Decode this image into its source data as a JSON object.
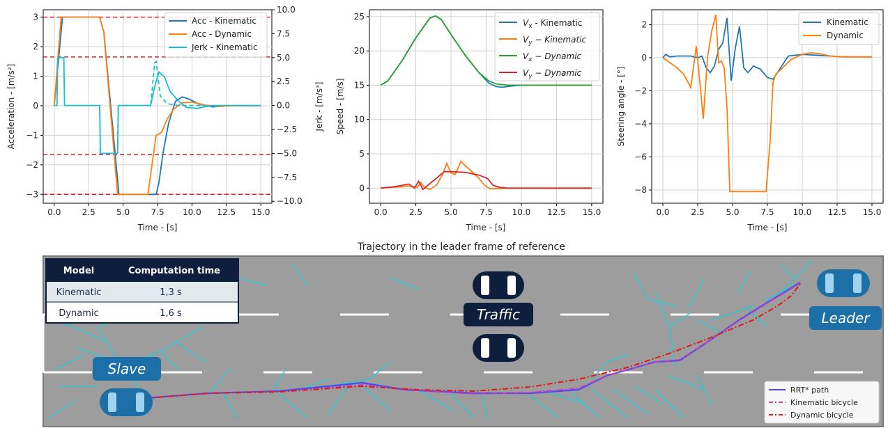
{
  "chart_data": [
    {
      "type": "line",
      "xlabel": "Time - [s]",
      "ylabel": "Acceleration - [m/s²]",
      "y2label": "Jerk - [m/s³]",
      "xlim": [
        -0.8,
        15.8
      ],
      "ylim": [
        -3.3,
        3.25
      ],
      "y2lim": [
        -10.2,
        10.0
      ],
      "xticks": [
        "0.0",
        "2.5",
        "5.0",
        "7.5",
        "10.0",
        "12.5",
        "15.0"
      ],
      "yticks": [
        "-3",
        "-2",
        "-1",
        "0",
        "1",
        "2",
        "3"
      ],
      "y2ticks": [
        "-10.0",
        "-7.5",
        "-5.0",
        "-2.5",
        "0.0",
        "2.5",
        "5.0",
        "7.5",
        "10.0"
      ],
      "limits": [
        3,
        -3,
        1.65,
        -1.65
      ],
      "legend": "top-right",
      "series": [
        {
          "name": "Acc - Kinematic",
          "color": "#1f77b4",
          "style": "solid",
          "x": [
            0,
            0.6,
            3.3,
            3.6,
            4.7,
            7.0,
            7.4,
            7.6,
            7.9,
            8.3,
            8.8,
            9.3,
            9.8,
            10.5,
            11.5,
            12.5,
            13.5,
            15
          ],
          "y": [
            0,
            3,
            3,
            2.5,
            -3,
            -3,
            -3,
            -2.6,
            -1.6,
            -0.6,
            0.15,
            0.3,
            0.22,
            0.06,
            -0.04,
            0,
            0,
            0
          ]
        },
        {
          "name": "Acc - Dynamic",
          "color": "#ff7f0e",
          "style": "solid",
          "x": [
            0,
            0.5,
            3.3,
            3.6,
            4.6,
            6.8,
            7.1,
            7.4,
            7.8,
            8.2,
            8.7,
            9.3,
            10.0,
            11,
            12,
            13,
            15
          ],
          "y": [
            0,
            3,
            3,
            2.5,
            -3,
            -3,
            -2,
            -1,
            -0.9,
            -0.45,
            -0.1,
            0.1,
            0.12,
            0.02,
            -0.02,
            0,
            0
          ]
        },
        {
          "name": "Jerk - Kinematic",
          "color": "#17becf",
          "style": "solid",
          "x": [
            0,
            0.2,
            0.25,
            0.7,
            0.75,
            3.3,
            3.35,
            4.6,
            4.65,
            6.9,
            7.0,
            7.3,
            7.6,
            8.0,
            8.4,
            9.0,
            9.6,
            10.4,
            11,
            12,
            13,
            15
          ],
          "y": [
            0,
            0,
            5,
            5,
            0,
            0,
            -5,
            -5,
            0,
            0,
            0,
            2,
            3.5,
            3,
            1.5,
            0.5,
            -0.2,
            -0.3,
            -0.1,
            0,
            0,
            0
          ]
        },
        {
          "name": "",
          "color": "#17becf",
          "style": "dashed",
          "x": [
            3.3,
            3.35,
            4.6,
            4.65,
            6.9,
            7.0,
            7.3,
            7.4,
            7.7,
            8.2,
            9,
            10,
            11,
            13,
            15
          ],
          "y": [
            0,
            -5,
            -5,
            0,
            0,
            0,
            4.5,
            4.6,
            1.0,
            0.2,
            0,
            0,
            0,
            0,
            0
          ]
        }
      ]
    },
    {
      "type": "line",
      "xlabel": "Time - [s]",
      "ylabel": "Speed - [m/s]",
      "xlim": [
        -0.8,
        15.8
      ],
      "ylim": [
        -2.2,
        26
      ],
      "xticks": [
        "0.0",
        "2.5",
        "5.0",
        "7.5",
        "10.0",
        "12.5",
        "15.0"
      ],
      "yticks": [
        "0",
        "5",
        "10",
        "15",
        "20",
        "25"
      ],
      "legend": "top-right",
      "series": [
        {
          "name": "Vx - Kinematic",
          "color": "#1f77b4",
          "x": [
            0,
            0.5,
            1.5,
            2.5,
            3.5,
            3.9,
            4.3,
            5,
            6,
            7,
            7.7,
            8.2,
            8.7,
            9.2,
            10,
            11,
            12,
            13,
            15
          ],
          "y": [
            15,
            15.6,
            18.5,
            21.9,
            24.8,
            25.1,
            24.6,
            22.4,
            19.4,
            16.8,
            15.3,
            14.8,
            14.7,
            14.85,
            15,
            15,
            15,
            15,
            15
          ]
        },
        {
          "name": "Vy - Kinematic",
          "color": "#ff7f0e",
          "x": [
            0,
            1,
            2,
            2.6,
            2.85,
            3.1,
            3.5,
            4.0,
            4.4,
            4.7,
            5.0,
            5.3,
            5.7,
            6.0,
            6.5,
            7.0,
            7.4,
            7.8,
            8.2,
            9,
            10,
            15
          ],
          "y": [
            0,
            0.15,
            0.3,
            0.1,
            0.8,
            0.1,
            -0.2,
            0.5,
            2.0,
            3.6,
            2.2,
            2.0,
            3.9,
            3.3,
            2.4,
            1.4,
            0.4,
            -0.1,
            -0.1,
            0,
            0,
            0
          ]
        },
        {
          "name": "Vx - Dynamic",
          "color": "#2ca02c",
          "x": [
            0,
            0.5,
            1.5,
            2.5,
            3.5,
            3.9,
            4.3,
            5,
            6,
            7,
            7.7,
            8.2,
            9,
            10,
            11,
            12,
            13,
            15
          ],
          "y": [
            15,
            15.6,
            18.5,
            21.9,
            24.8,
            25.1,
            24.6,
            22.4,
            19.4,
            16.8,
            15.6,
            15.2,
            15,
            15,
            15,
            15,
            15,
            15
          ]
        },
        {
          "name": "Vy - Dynamic",
          "color": "#d62728",
          "x": [
            0,
            1,
            2,
            2.4,
            2.7,
            3.0,
            3.4,
            4.0,
            4.5,
            5.0,
            6,
            7,
            7.6,
            8.0,
            8.5,
            9,
            10,
            15
          ],
          "y": [
            0,
            0.2,
            0.6,
            0.0,
            1.0,
            -0.2,
            0.5,
            1.5,
            2.4,
            2.4,
            2.3,
            1.9,
            1.4,
            0.4,
            0.1,
            0,
            0,
            0
          ]
        }
      ]
    },
    {
      "type": "line",
      "xlabel": "Time - [s]",
      "ylabel": "Steering angle - [°]",
      "xlim": [
        -0.8,
        15.8
      ],
      "ylim": [
        -8.8,
        2.9
      ],
      "xticks": [
        "0.0",
        "2.5",
        "5.0",
        "7.5",
        "10.0",
        "12.5",
        "15.0"
      ],
      "yticks": [
        "-8",
        "-6",
        "-4",
        "-2",
        "0",
        "2"
      ],
      "legend": "top-right",
      "series": [
        {
          "name": "Kinematic",
          "color": "#1f77b4",
          "x": [
            0,
            0.2,
            0.5,
            1,
            1.5,
            2,
            2.5,
            2.8,
            3.1,
            3.4,
            3.7,
            4.0,
            4.3,
            4.6,
            4.9,
            5.2,
            5.5,
            5.8,
            6.1,
            6.5,
            7,
            7.5,
            7.9,
            8.3,
            9,
            10,
            11,
            12,
            13,
            15
          ],
          "y": [
            0,
            0.2,
            0.05,
            0.1,
            0.1,
            0.1,
            0,
            0.1,
            -0.6,
            -0.9,
            -0.5,
            0.5,
            0.9,
            2.4,
            -1.4,
            0.6,
            1.9,
            -0.6,
            -0.9,
            -0.5,
            -0.7,
            -1.2,
            -1.3,
            -0.8,
            0.1,
            0.2,
            0.15,
            0.1,
            0.05,
            0.05
          ]
        },
        {
          "name": "Dynamic",
          "color": "#ff7f0e",
          "x": [
            0,
            0.5,
            1,
            1.5,
            2.0,
            2.4,
            2.6,
            2.9,
            3.2,
            3.5,
            3.8,
            4.0,
            4.2,
            4.4,
            4.6,
            4.8,
            5.0,
            5.2,
            5.6,
            6.4,
            7.4,
            7.7,
            7.9,
            8.1,
            8.6,
            9.2,
            10,
            10.6,
            11.2,
            12,
            13,
            15
          ],
          "y": [
            0,
            -0.3,
            -0.6,
            -1.0,
            -1.8,
            0.7,
            -1.0,
            -3.7,
            0,
            1.6,
            2.6,
            -0.3,
            -0.2,
            -0.6,
            -3,
            -8.1,
            -8.1,
            -8.1,
            -8.1,
            -8.1,
            -8.1,
            -5,
            -1.5,
            -1.0,
            -0.6,
            -0.1,
            0.2,
            0.3,
            0.25,
            0.1,
            0.05,
            0.05
          ]
        }
      ]
    }
  ],
  "trajectory": {
    "title": "Trajectory in the leader frame of reference",
    "table": {
      "headers": [
        "Model",
        "Computation time"
      ],
      "rows": [
        [
          "Kinematic",
          "1,3 s"
        ],
        [
          "Dynamic",
          "1,6 s"
        ]
      ]
    },
    "labels": {
      "traffic": "Traffic",
      "leader": "Leader",
      "slave": "Slave"
    },
    "legend": [
      {
        "name": "RRT* path",
        "color": "#4a4af0",
        "style": "solid"
      },
      {
        "name": "Kinematic bicycle",
        "color": "#c040c0",
        "style": "dashdot"
      },
      {
        "name": "Dynamic bicycle",
        "color": "#e01818",
        "style": "dashdot"
      }
    ],
    "colors": {
      "road": "#9d9d9d",
      "tree": "#34c5cc",
      "car_dark": "#0d1f3c",
      "car_blue": "#1d6fa8",
      "badge_blue": "#1d6fa8",
      "badge_dark": "#0d1f3c",
      "table_head": "#0d1f3c"
    }
  }
}
